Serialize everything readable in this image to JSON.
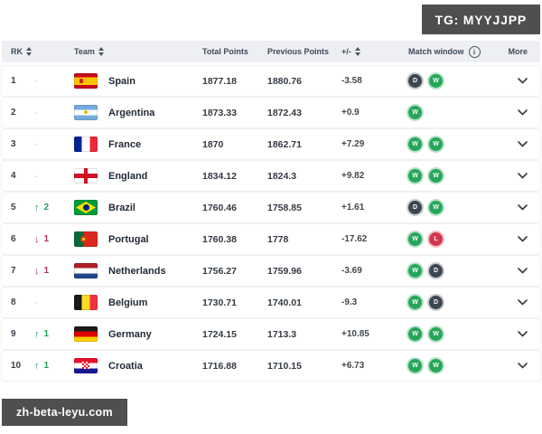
{
  "tg_badge": {
    "label": "TG: MYYJJPP"
  },
  "watermark": {
    "label": "zh-beta-leyu.com"
  },
  "table": {
    "headers": {
      "rk": "RK",
      "team": "Team",
      "total_points": "Total Points",
      "previous_points": "Previous Points",
      "plus_minus": "+/-",
      "match_window": "Match window",
      "more": "More"
    },
    "rows": [
      {
        "rank": "1",
        "change": {
          "dir": "same",
          "value": ""
        },
        "flag": "es",
        "team": "Spain",
        "total": "1877.18",
        "previous": "1880.76",
        "diff": "-3.58",
        "match": [
          "D",
          "W"
        ]
      },
      {
        "rank": "2",
        "change": {
          "dir": "same",
          "value": ""
        },
        "flag": "ar",
        "team": "Argentina",
        "total": "1873.33",
        "previous": "1872.43",
        "diff": "+0.9",
        "match": [
          "W"
        ]
      },
      {
        "rank": "3",
        "change": {
          "dir": "same",
          "value": ""
        },
        "flag": "fr",
        "team": "France",
        "total": "1870",
        "previous": "1862.71",
        "diff": "+7.29",
        "match": [
          "W",
          "W"
        ]
      },
      {
        "rank": "4",
        "change": {
          "dir": "same",
          "value": ""
        },
        "flag": "en",
        "team": "England",
        "total": "1834.12",
        "previous": "1824.3",
        "diff": "+9.82",
        "match": [
          "W",
          "W"
        ]
      },
      {
        "rank": "5",
        "change": {
          "dir": "up",
          "value": "2"
        },
        "flag": "br",
        "team": "Brazil",
        "total": "1760.46",
        "previous": "1758.85",
        "diff": "+1.61",
        "match": [
          "D",
          "W"
        ]
      },
      {
        "rank": "6",
        "change": {
          "dir": "down",
          "value": "1"
        },
        "flag": "pt",
        "team": "Portugal",
        "total": "1760.38",
        "previous": "1778",
        "diff": "-17.62",
        "match": [
          "W",
          "L"
        ]
      },
      {
        "rank": "7",
        "change": {
          "dir": "down",
          "value": "1"
        },
        "flag": "nl",
        "team": "Netherlands",
        "total": "1756.27",
        "previous": "1759.96",
        "diff": "-3.69",
        "match": [
          "W",
          "D"
        ]
      },
      {
        "rank": "8",
        "change": {
          "dir": "same",
          "value": ""
        },
        "flag": "be",
        "team": "Belgium",
        "total": "1730.71",
        "previous": "1740.01",
        "diff": "-9.3",
        "match": [
          "W",
          "D"
        ]
      },
      {
        "rank": "9",
        "change": {
          "dir": "up",
          "value": "1"
        },
        "flag": "de",
        "team": "Germany",
        "total": "1724.15",
        "previous": "1713.3",
        "diff": "+10.85",
        "match": [
          "W",
          "W"
        ]
      },
      {
        "rank": "10",
        "change": {
          "dir": "up",
          "value": "1"
        },
        "flag": "hr",
        "team": "Croatia",
        "total": "1716.88",
        "previous": "1710.15",
        "diff": "+6.73",
        "match": [
          "W",
          "W"
        ]
      }
    ]
  },
  "icons": {
    "sort": "sort-arrows",
    "info": "info-circle",
    "expand": "chevron-down"
  },
  "colors": {
    "win": "#27a65a",
    "draw": "#3e4651",
    "loss": "#d2374d",
    "rank_up": "#1f9d55",
    "rank_down": "#b5314c",
    "dark_box_bg": "#4f4f4f",
    "header_bg": "#edeff3"
  }
}
